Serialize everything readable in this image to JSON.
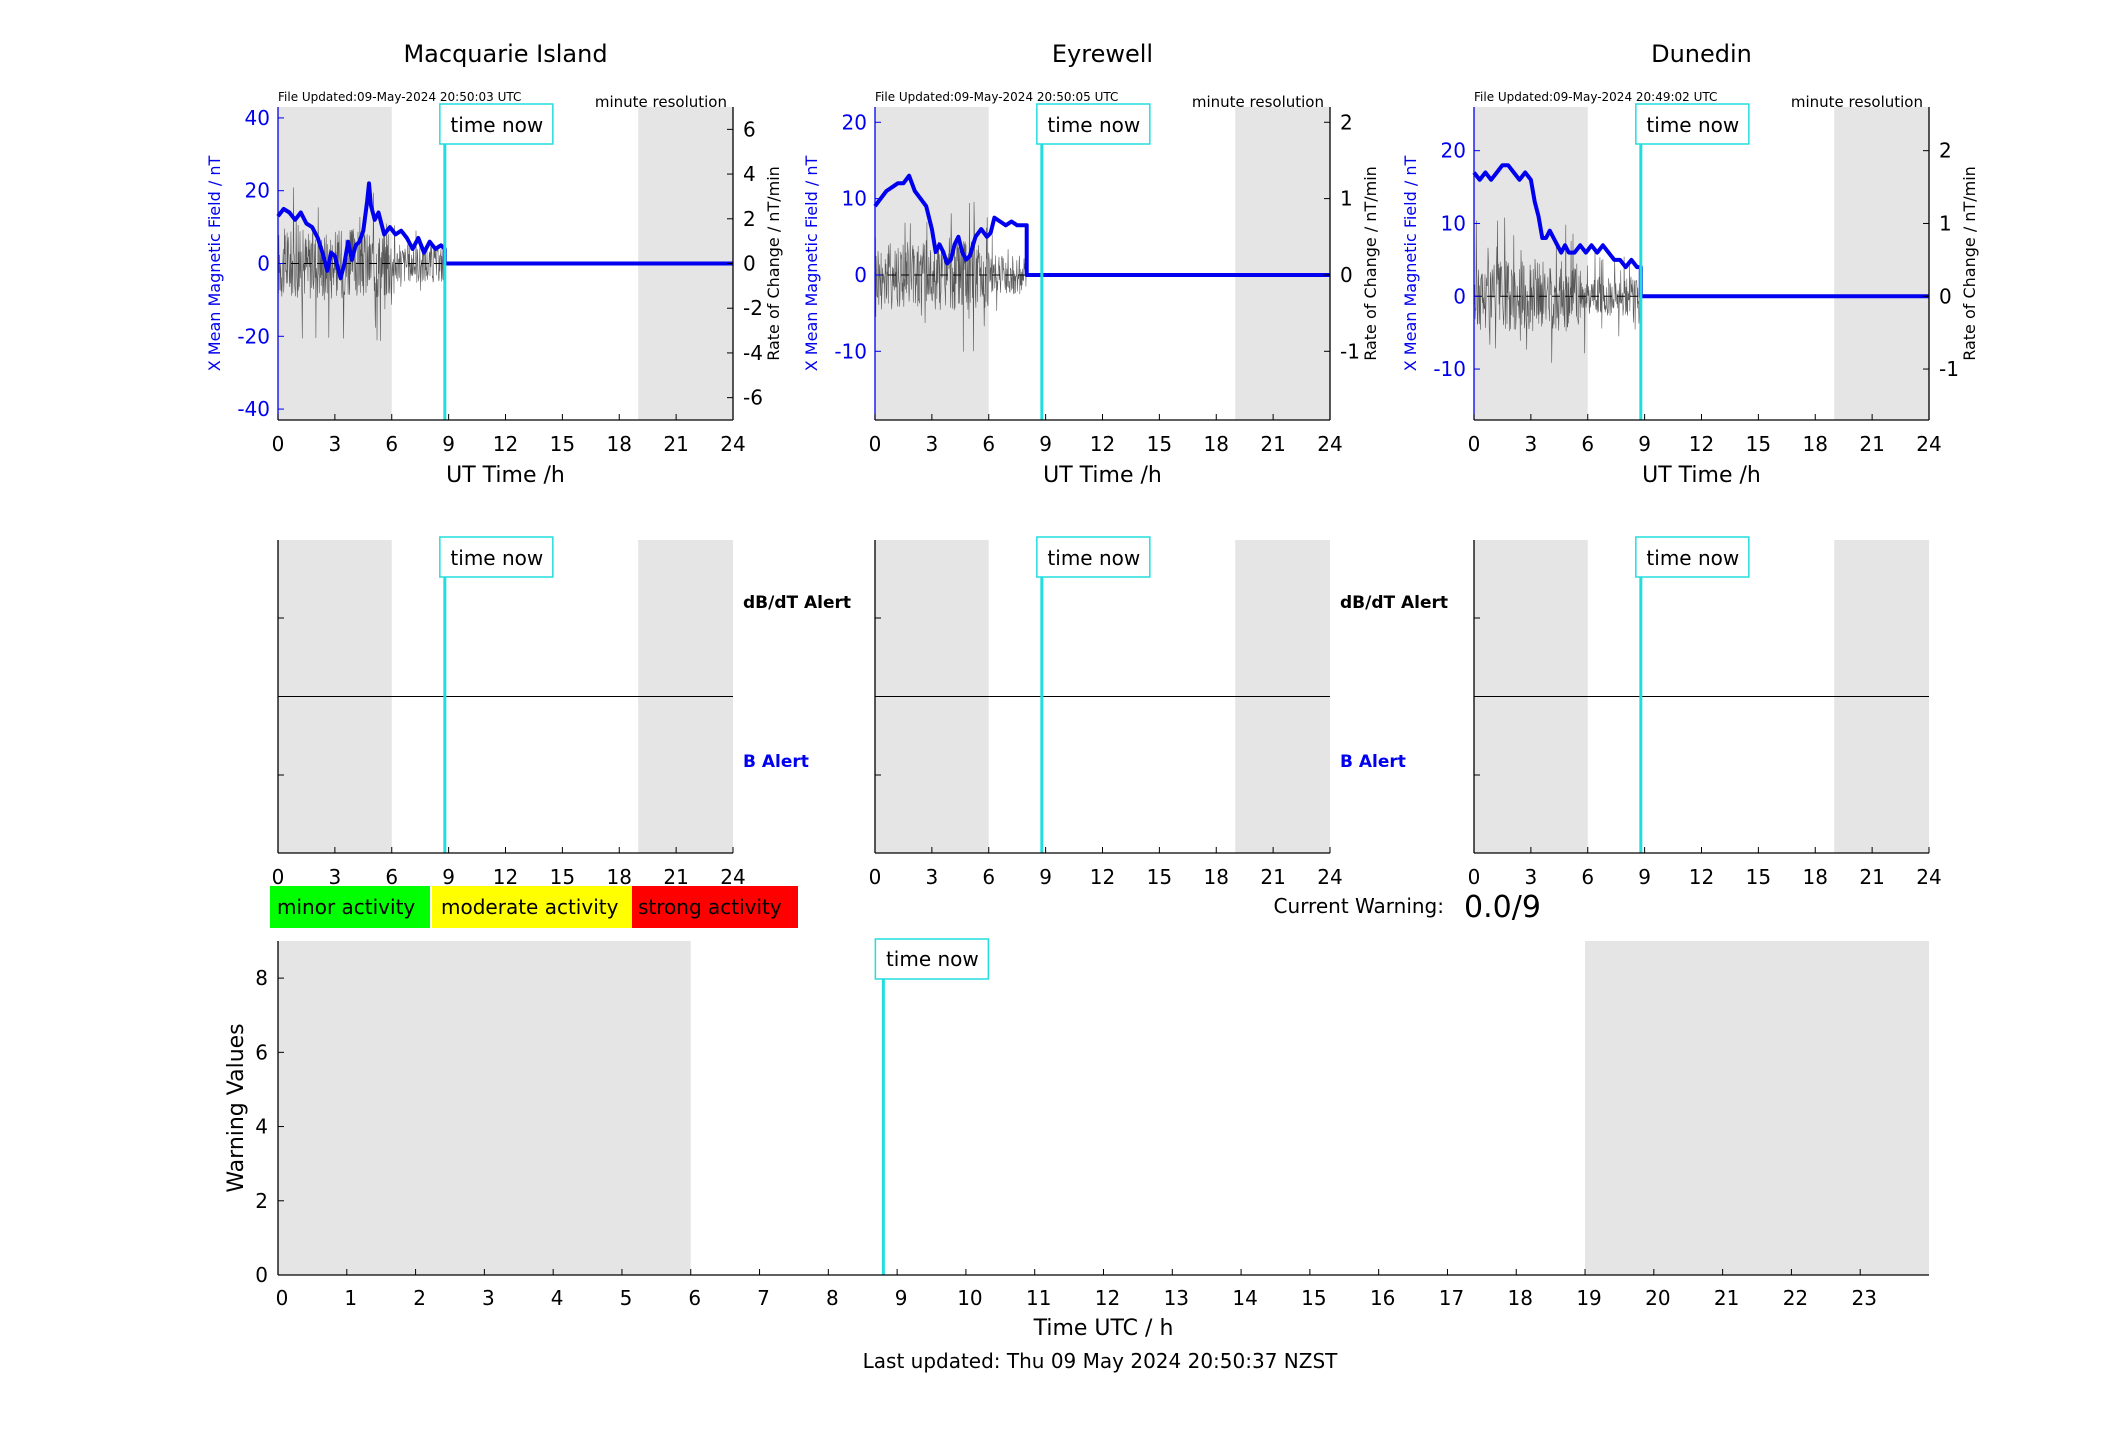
{
  "footer": {
    "last_updated": "Last updated: Thu 09 May 2024 20:50:37 NZST"
  },
  "colors": {
    "shade": "#e5e5e5",
    "field_line": "#0000ee",
    "rate_line": "#333333",
    "time_now": "#22dddd",
    "minor": "#00ff00",
    "moderate": "#ffff00",
    "strong": "#ff0000"
  },
  "legend": {
    "minor": "minor activity",
    "moderate": "moderate activity",
    "strong": "strong activity"
  },
  "current_warning": {
    "label": "Current Warning:",
    "value": "0.0/9"
  },
  "time_now_label": "time now",
  "stations": [
    {
      "name": "Macquarie Island",
      "file_updated": "File Updated:09-May-2024 20:50:03 UTC",
      "resolution": "minute resolution",
      "ylabel_left": "X Mean Magnetic Field / nT",
      "ylabel_right": "Rate of Change / nT/min",
      "xlabel": "UT Time /h",
      "left_ylim": [
        -43,
        43
      ],
      "left_ticks": [
        -40,
        -20,
        0,
        20,
        40
      ],
      "right_ylim": [
        -7,
        7
      ],
      "right_ticks": [
        -6,
        -4,
        -2,
        0,
        2,
        4,
        6
      ],
      "alert_top": "dB/dT Alert",
      "alert_bottom": "B Alert",
      "data_end_hour": 8.8,
      "field_series": [
        [
          0,
          13
        ],
        [
          0.3,
          15
        ],
        [
          0.6,
          14
        ],
        [
          0.9,
          12
        ],
        [
          1.2,
          14
        ],
        [
          1.5,
          11
        ],
        [
          1.8,
          10
        ],
        [
          2.1,
          7
        ],
        [
          2.4,
          2
        ],
        [
          2.6,
          -2
        ],
        [
          2.8,
          3
        ],
        [
          3.0,
          2
        ],
        [
          3.3,
          -4
        ],
        [
          3.5,
          0
        ],
        [
          3.7,
          6
        ],
        [
          3.9,
          1
        ],
        [
          4.1,
          5
        ],
        [
          4.3,
          6
        ],
        [
          4.5,
          9
        ],
        [
          4.7,
          17
        ],
        [
          4.8,
          22
        ],
        [
          4.9,
          16
        ],
        [
          5.1,
          12
        ],
        [
          5.3,
          14
        ],
        [
          5.6,
          8
        ],
        [
          5.9,
          10
        ],
        [
          6.2,
          8
        ],
        [
          6.5,
          9
        ],
        [
          6.8,
          7
        ],
        [
          7.1,
          4
        ],
        [
          7.4,
          7
        ],
        [
          7.7,
          3
        ],
        [
          8.0,
          6
        ],
        [
          8.3,
          4
        ],
        [
          8.6,
          5
        ],
        [
          8.8,
          4
        ],
        [
          8.8,
          0
        ],
        [
          24,
          0
        ]
      ]
    },
    {
      "name": "Eyrewell",
      "file_updated": "File Updated:09-May-2024 20:50:05 UTC",
      "resolution": "minute resolution",
      "ylabel_left": "X Mean Magnetic Field / nT",
      "ylabel_right": "Rate of Change / nT/min",
      "xlabel": "UT Time /h",
      "left_ylim": [
        -19,
        22
      ],
      "left_ticks": [
        -10,
        0,
        10,
        20
      ],
      "right_ylim": [
        -1.9,
        2.2
      ],
      "right_ticks": [
        -1,
        0,
        1,
        2
      ],
      "alert_top": "dB/dT Alert",
      "alert_bottom": "B Alert",
      "data_end_hour": 8.0,
      "field_series": [
        [
          0,
          9
        ],
        [
          0.3,
          10
        ],
        [
          0.6,
          11
        ],
        [
          0.9,
          11.5
        ],
        [
          1.2,
          12
        ],
        [
          1.5,
          12
        ],
        [
          1.8,
          13
        ],
        [
          2.1,
          11
        ],
        [
          2.4,
          10
        ],
        [
          2.7,
          9
        ],
        [
          3.0,
          6
        ],
        [
          3.2,
          3
        ],
        [
          3.4,
          4
        ],
        [
          3.6,
          3
        ],
        [
          3.8,
          1.5
        ],
        [
          4.0,
          2
        ],
        [
          4.2,
          4
        ],
        [
          4.4,
          5
        ],
        [
          4.6,
          3
        ],
        [
          4.8,
          2
        ],
        [
          5.0,
          2.5
        ],
        [
          5.3,
          5
        ],
        [
          5.6,
          6
        ],
        [
          5.9,
          5
        ],
        [
          6.1,
          5.5
        ],
        [
          6.3,
          7.5
        ],
        [
          6.6,
          7
        ],
        [
          6.9,
          6.5
        ],
        [
          7.2,
          7
        ],
        [
          7.5,
          6.5
        ],
        [
          8.0,
          6.5
        ],
        [
          8.0,
          0
        ],
        [
          24,
          0
        ]
      ]
    },
    {
      "name": "Dunedin",
      "file_updated": "File Updated:09-May-2024 20:49:02 UTC",
      "resolution": "minute resolution",
      "ylabel_left": "X Mean Magnetic Field / nT",
      "ylabel_right": "Rate of Change / nT/min",
      "xlabel": "UT Time /h",
      "left_ylim": [
        -17,
        26
      ],
      "left_ticks": [
        -10,
        0,
        10,
        20
      ],
      "right_ylim": [
        -1.7,
        2.6
      ],
      "right_ticks": [
        -1,
        0,
        1,
        2
      ],
      "alert_top": "dB/dT Alert",
      "alert_bottom": "B Alert",
      "data_end_hour": 8.8,
      "field_series": [
        [
          0,
          17
        ],
        [
          0.3,
          16
        ],
        [
          0.6,
          17
        ],
        [
          0.9,
          16
        ],
        [
          1.2,
          17
        ],
        [
          1.5,
          18
        ],
        [
          1.8,
          18
        ],
        [
          2.1,
          17
        ],
        [
          2.4,
          16
        ],
        [
          2.7,
          17
        ],
        [
          3.0,
          16
        ],
        [
          3.2,
          13
        ],
        [
          3.4,
          11
        ],
        [
          3.6,
          8
        ],
        [
          3.8,
          8
        ],
        [
          4.0,
          9
        ],
        [
          4.2,
          8
        ],
        [
          4.4,
          7
        ],
        [
          4.6,
          6
        ],
        [
          4.8,
          7
        ],
        [
          5.0,
          6
        ],
        [
          5.3,
          6
        ],
        [
          5.6,
          7
        ],
        [
          5.9,
          6
        ],
        [
          6.2,
          7
        ],
        [
          6.5,
          6
        ],
        [
          6.8,
          7
        ],
        [
          7.1,
          6
        ],
        [
          7.4,
          5
        ],
        [
          7.7,
          5
        ],
        [
          8.0,
          4
        ],
        [
          8.3,
          5
        ],
        [
          8.6,
          4
        ],
        [
          8.8,
          4
        ],
        [
          8.8,
          0
        ],
        [
          24,
          0
        ]
      ]
    }
  ],
  "warning_chart": {
    "type": "bar",
    "ylabel": "Warning Values",
    "xlabel": "Time UTC / h",
    "xlim": [
      0,
      24
    ],
    "ylim": [
      0,
      9
    ],
    "xticks": [
      0,
      1,
      2,
      3,
      4,
      5,
      6,
      7,
      8,
      9,
      10,
      11,
      12,
      13,
      14,
      15,
      16,
      17,
      18,
      19,
      20,
      21,
      22,
      23
    ],
    "yticks": [
      0,
      2,
      4,
      6,
      8
    ],
    "values": []
  },
  "chart_data": [
    {
      "type": "line",
      "title": "Macquarie Island",
      "xlabel": "UT Time /h",
      "ylabel": "X Mean Magnetic Field / nT",
      "ylabel_right": "Rate of Change / nT/min",
      "xlim": [
        0,
        24
      ],
      "ylim": [
        -43,
        43
      ],
      "time_now_hour": 8.8,
      "shaded_intervals": [
        [
          0,
          6
        ],
        [
          19,
          24
        ]
      ]
    },
    {
      "type": "line",
      "title": "Eyrewell",
      "xlabel": "UT Time /h",
      "ylabel": "X Mean Magnetic Field / nT",
      "ylabel_right": "Rate of Change / nT/min",
      "xlim": [
        0,
        24
      ],
      "ylim": [
        -19,
        22
      ],
      "time_now_hour": 8.8,
      "shaded_intervals": [
        [
          0,
          6
        ],
        [
          19,
          24
        ]
      ]
    },
    {
      "type": "line",
      "title": "Dunedin",
      "xlabel": "UT Time /h",
      "ylabel": "X Mean Magnetic Field / nT",
      "ylabel_right": "Rate of Change / nT/min",
      "xlim": [
        0,
        24
      ],
      "ylim": [
        -17,
        26
      ],
      "time_now_hour": 8.8,
      "shaded_intervals": [
        [
          0,
          6
        ],
        [
          19,
          24
        ]
      ]
    },
    {
      "type": "bar",
      "xlabel": "Time UTC / h",
      "ylabel": "Warning Values",
      "xlim": [
        0,
        24
      ],
      "ylim": [
        0,
        9
      ],
      "time_now_hour": 8.8,
      "shaded_intervals": [
        [
          0,
          6
        ],
        [
          19,
          24
        ]
      ],
      "values": []
    }
  ]
}
